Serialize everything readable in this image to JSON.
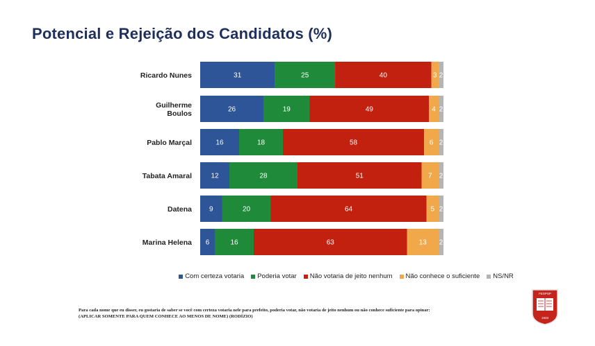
{
  "title": "Potencial e Rejeição dos Candidatos (%)",
  "chart_data": {
    "type": "bar",
    "orientation": "horizontal",
    "stacked": true,
    "categories": [
      "Ricardo Nunes",
      "Guilherme Boulos",
      "Pablo Marçal",
      "Tabata Amaral",
      "Datena",
      "Marina Helena"
    ],
    "series": [
      {
        "name": "Com certeza votaria",
        "color": "#2e5597",
        "values": [
          31,
          26,
          16,
          12,
          9,
          6
        ]
      },
      {
        "name": "Poderia votar",
        "color": "#1f8a3a",
        "values": [
          25,
          19,
          18,
          28,
          20,
          16
        ]
      },
      {
        "name": "Não votaria de jeito nenhum",
        "color": "#c3210f",
        "values": [
          40,
          49,
          58,
          51,
          64,
          63
        ]
      },
      {
        "name": "Não conhece o suficiente",
        "color": "#f0a84a",
        "values": [
          3,
          4,
          6,
          7,
          5,
          13
        ]
      },
      {
        "name": "NS/NR",
        "color": "#b4b4b4",
        "values": [
          2,
          2,
          2,
          2,
          2,
          2
        ]
      }
    ],
    "legend_position": "bottom",
    "grid": false
  },
  "footnote": {
    "line1": "Para cada nome que eu disser, eu gostaria de saber se você com certeza votaria nele para prefeito, poderia votar, não votaria de jeito nenhum ou não conhece suficiente para opinar:",
    "line2": "(APLICAR SOMENTE PARA QUEM CONHECE AO MENOS DE NOME) (RODÍZIO)"
  },
  "seal": {
    "top_text": "FESPSP",
    "year": "1933"
  }
}
